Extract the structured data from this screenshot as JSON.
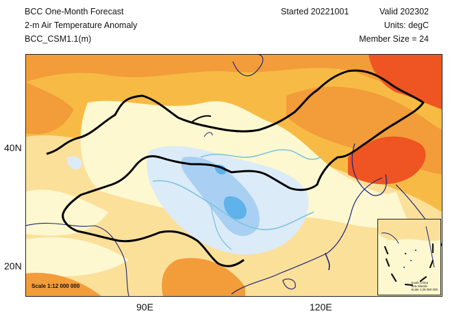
{
  "header": {
    "title": "BCC One-Month Forecast",
    "variable": "2-m Air Temperature Anomaly",
    "model": "BCC_CSM1.1(m)",
    "started": "Started 20221001",
    "valid": "Valid 202302",
    "units": "Units: degC",
    "member_size": "Member Size = 24"
  },
  "axes": {
    "y_labels": [
      "40N",
      "20N"
    ],
    "x_labels": [
      "90E",
      "120E"
    ]
  },
  "map": {
    "scale_label": "Scale 1:12 000 000",
    "inset_caption": "South China\nSea Islands\nScale 1:28 000 000"
  },
  "colors": {
    "strong_warm": "#ee5522",
    "warm": "#f39c3a",
    "mid_warm": "#f7bb45",
    "light_warm": "#fbe09a",
    "neutral": "#fdf8d0",
    "light_cool": "#dcebf8",
    "cool": "#a9d0f3",
    "strong_cool": "#5fb2ea",
    "border": "#000000",
    "coast": "#1a1f7a",
    "river": "#7cc2de"
  }
}
